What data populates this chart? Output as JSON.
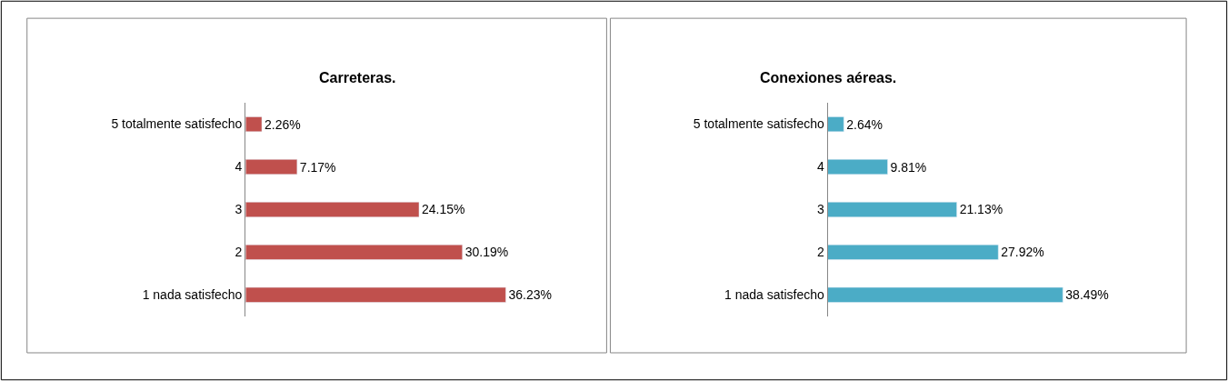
{
  "chart_data": [
    {
      "type": "bar",
      "orientation": "horizontal",
      "title": "Carreteras.",
      "categories": [
        "5 totalmente satisfecho",
        "4",
        "3",
        "2",
        "1 nada satisfecho"
      ],
      "values": [
        2.26,
        7.17,
        24.15,
        30.19,
        36.23
      ],
      "value_labels": [
        "2.26%",
        "7.17%",
        "24.15%",
        "30.19%",
        "36.23%"
      ],
      "color": "#c0504d"
    },
    {
      "type": "bar",
      "orientation": "horizontal",
      "title": "Conexiones aéreas.",
      "categories": [
        "5 totalmente satisfecho",
        "4",
        "3",
        "2",
        "1 nada satisfecho"
      ],
      "values": [
        2.64,
        9.81,
        21.13,
        27.92,
        38.49
      ],
      "value_labels": [
        "2.64%",
        "9.81%",
        "21.13%",
        "27.92%",
        "38.49%"
      ],
      "color": "#4bacc6"
    }
  ]
}
